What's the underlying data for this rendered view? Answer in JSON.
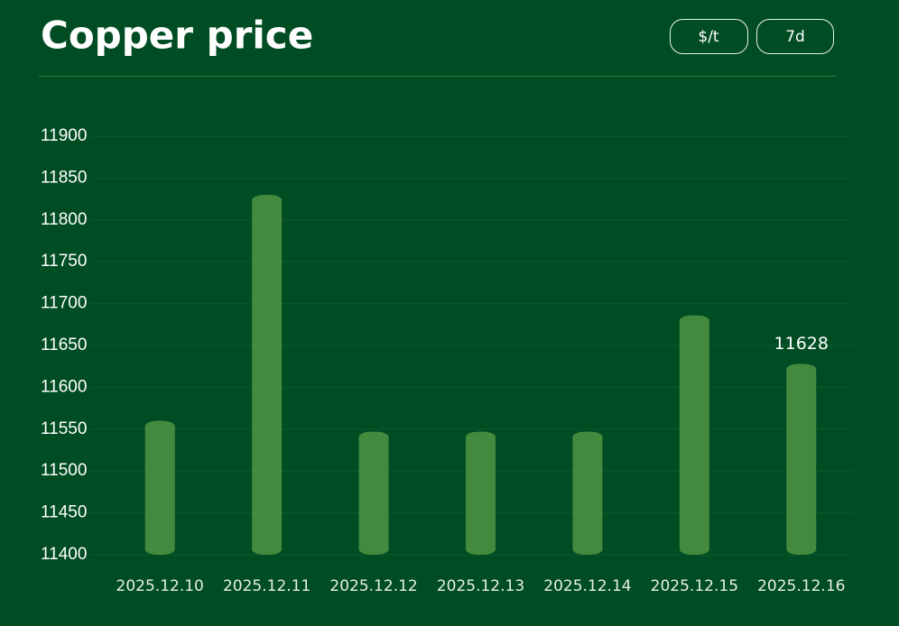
{
  "chart_data": {
    "type": "bar",
    "title": "Copper price",
    "categories": [
      "2025.12.10",
      "2025.12.11",
      "2025.12.12",
      "2025.12.13",
      "2025.12.14",
      "2025.12.15",
      "2025.12.16"
    ],
    "values": [
      11560,
      11830,
      11547,
      11547,
      11547,
      11686,
      11628
    ],
    "value_labels": [
      null,
      null,
      null,
      null,
      null,
      null,
      "11628"
    ],
    "color": "#448a3e",
    "ylim": [
      11400,
      11900
    ],
    "yticks": [
      11400,
      11450,
      11500,
      11550,
      11600,
      11650,
      11700,
      11750,
      11800,
      11850,
      11900
    ],
    "grid": true
  },
  "controls": [
    "$/t",
    "7d"
  ]
}
